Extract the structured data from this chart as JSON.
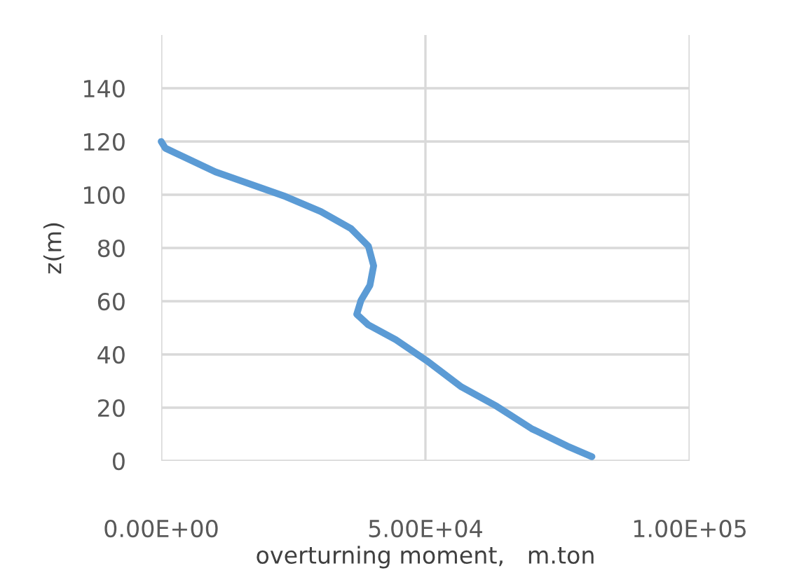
{
  "chart_data": {
    "type": "line",
    "xlabel": "overturning moment,   m.ton",
    "ylabel": "z(m)",
    "series": [
      {
        "color": "#5b9bd5",
        "x": [
          0,
          770,
          10260,
          23560,
          30200,
          35900,
          39200,
          40200,
          39500,
          37800,
          37000,
          39200,
          44400,
          50200,
          56800,
          63500,
          70100,
          76800,
          81500
        ],
        "values": [
          120,
          117.5,
          108.6,
          99.3,
          93.7,
          87.3,
          80.7,
          73.3,
          66,
          60.3,
          55.1,
          51.1,
          45.5,
          37.7,
          27.8,
          20.5,
          12.1,
          5.6,
          1.6
        ]
      }
    ],
    "xlim": [
      0,
      100000
    ],
    "ylim": [
      0,
      160
    ],
    "xticks": [
      {
        "value": 0,
        "label": "0.00E+00"
      },
      {
        "value": 50000,
        "label": "5.00E+04"
      },
      {
        "value": 100000,
        "label": "1.00E+05"
      }
    ],
    "yticks": [
      0,
      20,
      40,
      60,
      80,
      100,
      120,
      140
    ],
    "grid": true
  }
}
